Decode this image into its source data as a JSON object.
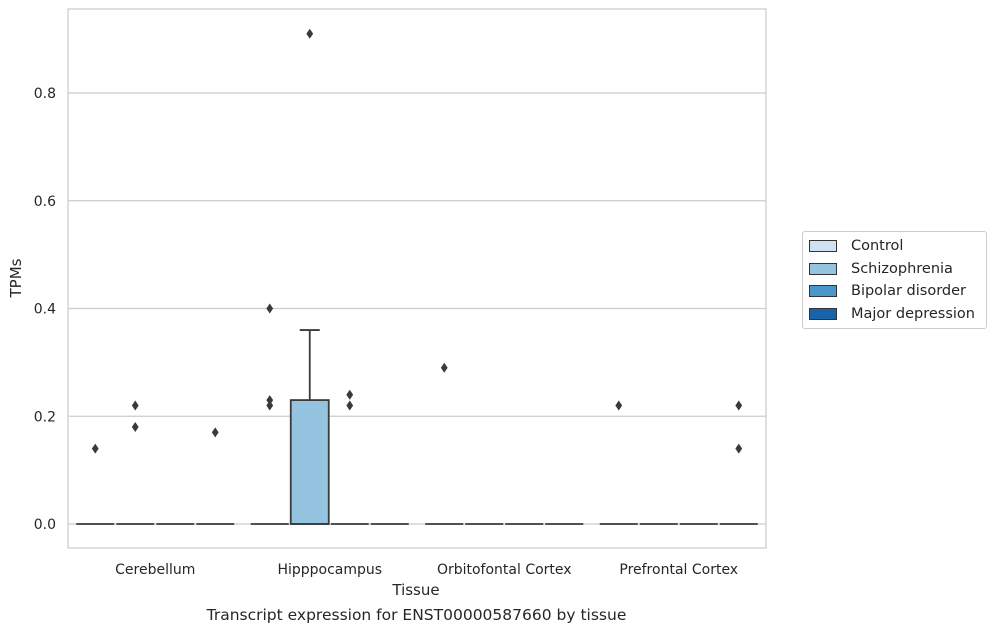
{
  "chart_data": {
    "type": "box",
    "title": "Transcript expression for ENST00000587660 by tissue",
    "xlabel": "Tissue",
    "ylabel": "TPMs",
    "ylim": [
      -0.045,
      0.96
    ],
    "yticks": [
      0.0,
      0.2,
      0.4,
      0.6,
      0.8
    ],
    "ytick_labels": [
      "0.0",
      "0.2",
      "0.4",
      "0.6",
      "0.8"
    ],
    "grid": "horizontal",
    "legend_position": "right",
    "categories": [
      "Cerebellum",
      "Hipppocampus",
      "Orbitofontal Cortex",
      "Prefrontal Cortex"
    ],
    "series": [
      {
        "name": "Control",
        "color": "#d0e1f2",
        "boxes": [
          {
            "min": 0,
            "q1": 0,
            "median": 0,
            "q3": 0,
            "max": 0,
            "outliers": [
              0.14
            ]
          },
          {
            "min": 0,
            "q1": 0,
            "median": 0,
            "q3": 0,
            "max": 0,
            "outliers": [
              0.4,
              0.23,
              0.22
            ]
          },
          {
            "min": 0,
            "q1": 0,
            "median": 0,
            "q3": 0,
            "max": 0,
            "outliers": [
              0.29
            ]
          },
          {
            "min": 0,
            "q1": 0,
            "median": 0,
            "q3": 0,
            "max": 0,
            "outliers": [
              0.22
            ]
          }
        ]
      },
      {
        "name": "Schizophrenia",
        "color": "#94c4df",
        "boxes": [
          {
            "min": 0,
            "q1": 0,
            "median": 0,
            "q3": 0,
            "max": 0,
            "outliers": [
              0.22,
              0.18
            ]
          },
          {
            "min": 0,
            "q1": 0,
            "median": 0,
            "q3": 0.23,
            "max": 0.36,
            "outliers": [
              0.91
            ]
          },
          {
            "min": 0,
            "q1": 0,
            "median": 0,
            "q3": 0,
            "max": 0,
            "outliers": []
          },
          {
            "min": 0,
            "q1": 0,
            "median": 0,
            "q3": 0,
            "max": 0,
            "outliers": []
          }
        ]
      },
      {
        "name": "Bipolar disorder",
        "color": "#4a98c9",
        "boxes": [
          {
            "min": 0,
            "q1": 0,
            "median": 0,
            "q3": 0,
            "max": 0,
            "outliers": []
          },
          {
            "min": 0,
            "q1": 0,
            "median": 0,
            "q3": 0,
            "max": 0,
            "outliers": [
              0.24,
              0.22
            ]
          },
          {
            "min": 0,
            "q1": 0,
            "median": 0,
            "q3": 0,
            "max": 0,
            "outliers": []
          },
          {
            "min": 0,
            "q1": 0,
            "median": 0,
            "q3": 0,
            "max": 0,
            "outliers": []
          }
        ]
      },
      {
        "name": "Major depression",
        "color": "#1764ab",
        "boxes": [
          {
            "min": 0,
            "q1": 0,
            "median": 0,
            "q3": 0,
            "max": 0,
            "outliers": [
              0.17
            ]
          },
          {
            "min": 0,
            "q1": 0,
            "median": 0,
            "q3": 0,
            "max": 0,
            "outliers": []
          },
          {
            "min": 0,
            "q1": 0,
            "median": 0,
            "q3": 0,
            "max": 0,
            "outliers": []
          },
          {
            "min": 0,
            "q1": 0,
            "median": 0,
            "q3": 0,
            "max": 0,
            "outliers": [
              0.22,
              0.14
            ]
          }
        ]
      }
    ]
  }
}
